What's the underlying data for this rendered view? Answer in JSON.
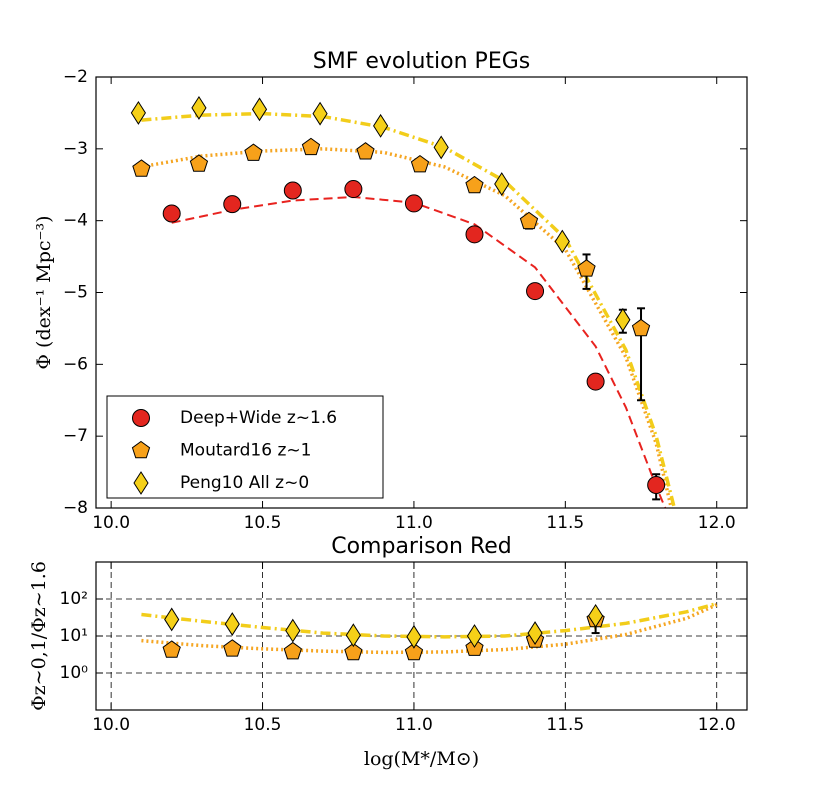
{
  "chart_data": [
    {
      "type": "scatter",
      "title": "SMF evolution PEGs",
      "ylabel": "Φ (dex⁻¹ Mpc⁻³)",
      "xlim": [
        9.95,
        12.1
      ],
      "xticks": [
        {
          "value": 10.0,
          "label": "10.0"
        },
        10.5,
        {
          "value": 11.0,
          "label": "11.0"
        },
        11.5,
        {
          "value": 12.0,
          "label": "12.0"
        }
      ],
      "ylim": [
        -8,
        -2
      ],
      "yticks": [
        {
          "value": -8,
          "label": "−8"
        },
        {
          "value": -7,
          "label": "−7"
        },
        {
          "value": -6,
          "label": "−6"
        },
        {
          "value": -5,
          "label": "−5"
        },
        {
          "value": -4,
          "label": "−4"
        },
        {
          "value": -3,
          "label": "−3"
        },
        {
          "value": -2,
          "label": "−2"
        }
      ],
      "grid": false,
      "log_y": false,
      "legend": "lower left",
      "series": [
        {
          "name": "Deep+Wide z~1.6",
          "color": "#e3261f",
          "marker": "circle",
          "x": [
            10.2,
            10.4,
            10.6,
            10.8,
            11.0,
            11.2,
            11.4,
            11.6,
            11.8
          ],
          "values": [
            -3.9,
            -3.77,
            -3.58,
            -3.56,
            -3.76,
            -4.19,
            -4.98,
            -6.24,
            -7.68
          ],
          "yerr_low": [
            null,
            null,
            null,
            null,
            null,
            null,
            null,
            null,
            0.2
          ],
          "yerr_high": [
            null,
            null,
            null,
            null,
            null,
            null,
            null,
            null,
            0.15
          ]
        },
        {
          "name": "Moutard16 z~1",
          "color": "#f7a11a",
          "marker": "pentagon",
          "x": [
            10.1,
            10.29,
            10.47,
            10.66,
            10.84,
            11.02,
            11.2,
            11.38,
            11.57,
            11.75
          ],
          "values": [
            -3.28,
            -3.21,
            -3.06,
            -2.98,
            -3.04,
            -3.22,
            -3.51,
            -4.01,
            -4.67,
            -5.5
          ],
          "yerr_low": [
            null,
            null,
            null,
            null,
            null,
            null,
            null,
            0.1,
            0.28,
            1.0
          ],
          "yerr_high": [
            null,
            null,
            null,
            null,
            null,
            null,
            null,
            0.08,
            0.2,
            0.28
          ]
        },
        {
          "name": "Peng10 All z~0",
          "color": "#f5d018",
          "marker": "diamond",
          "x": [
            10.09,
            10.29,
            10.49,
            10.69,
            10.89,
            11.09,
            11.29,
            11.49,
            11.69
          ],
          "values": [
            -2.5,
            -2.43,
            -2.45,
            -2.51,
            -2.68,
            -2.98,
            -3.49,
            -4.29,
            -5.38
          ],
          "yerr_low": [
            null,
            null,
            null,
            null,
            null,
            null,
            null,
            null,
            0.18
          ],
          "yerr_high": [
            null,
            null,
            null,
            null,
            null,
            null,
            null,
            null,
            0.14
          ]
        }
      ],
      "fits": [
        {
          "color": "#e8231f",
          "style": "dashed",
          "x": [
            10.2,
            10.4,
            10.6,
            10.8,
            11.0,
            11.2,
            11.4,
            11.6,
            11.7,
            11.8,
            11.83
          ],
          "values": [
            -4.03,
            -3.85,
            -3.72,
            -3.67,
            -3.75,
            -4.05,
            -4.65,
            -5.75,
            -6.6,
            -7.7,
            -8.0
          ]
        },
        {
          "color": "#f5a623",
          "style": "dotted",
          "x": [
            10.1,
            10.3,
            10.5,
            10.7,
            10.9,
            11.1,
            11.3,
            11.5,
            11.7,
            11.8,
            11.85
          ],
          "values": [
            -3.25,
            -3.1,
            -3.03,
            -3.0,
            -3.05,
            -3.25,
            -3.65,
            -4.4,
            -5.9,
            -7.1,
            -8.0
          ]
        },
        {
          "color": "#f2cd1a",
          "style": "dashdot",
          "x": [
            10.1,
            10.3,
            10.5,
            10.7,
            10.9,
            11.1,
            11.3,
            11.5,
            11.7,
            11.8,
            11.86
          ],
          "values": [
            -2.6,
            -2.53,
            -2.51,
            -2.55,
            -2.7,
            -2.98,
            -3.45,
            -4.25,
            -5.8,
            -7.0,
            -8.0
          ]
        }
      ]
    },
    {
      "type": "scatter",
      "title": "Comparison Red",
      "ylabel": "Φz∼0,1/Φz∼1.6",
      "xlabel": "log(M*/M⊙)",
      "xlim": [
        9.95,
        12.1
      ],
      "xticks": [
        {
          "value": 10.0,
          "label": "10.0"
        },
        10.5,
        {
          "value": 11.0,
          "label": "11.0"
        },
        11.5,
        {
          "value": 12.0,
          "label": "12.0"
        }
      ],
      "ylim": [
        0.1,
        1000
      ],
      "yticks": [
        {
          "value": 1,
          "label": "10⁰"
        },
        {
          "value": 10,
          "label": "10¹"
        },
        {
          "value": 100,
          "label": "10²"
        }
      ],
      "grid": true,
      "log_y": true,
      "series": [
        {
          "color": "#f7a11a",
          "marker": "pentagon",
          "x": [
            10.2,
            10.4,
            10.6,
            10.8,
            11.0,
            11.2,
            11.4,
            11.6
          ],
          "values": [
            4.2,
            4.5,
            3.8,
            3.6,
            3.6,
            4.7,
            7.8,
            28
          ],
          "yerr_low": [
            null,
            null,
            null,
            null,
            null,
            null,
            null,
            16
          ],
          "yerr_high": [
            null,
            null,
            null,
            null,
            null,
            null,
            null,
            17
          ]
        },
        {
          "color": "#f5d018",
          "marker": "diamond",
          "x": [
            10.2,
            10.4,
            10.6,
            10.8,
            11.0,
            11.2,
            11.4,
            11.6
          ],
          "values": [
            28,
            21,
            14,
            10.5,
            9.5,
            10,
            12,
            35
          ],
          "yerr_low": [
            null,
            null,
            null,
            null,
            null,
            null,
            null,
            null
          ],
          "yerr_high": [
            null,
            null,
            null,
            null,
            null,
            null,
            null,
            null
          ]
        }
      ],
      "fits": [
        {
          "color": "#f5a623",
          "style": "dotted",
          "x": [
            10.1,
            10.3,
            10.5,
            10.7,
            10.9,
            11.1,
            11.3,
            11.5,
            11.7,
            11.9,
            12.0
          ],
          "values": [
            7.5,
            5.5,
            4.5,
            3.9,
            3.6,
            3.7,
            4.3,
            6,
            11,
            30,
            70
          ]
        },
        {
          "color": "#f2cd1a",
          "style": "dashdot",
          "x": [
            10.1,
            10.3,
            10.5,
            10.7,
            10.9,
            11.1,
            11.3,
            11.5,
            11.7,
            11.9,
            12.0
          ],
          "values": [
            38,
            25,
            17,
            12,
            10,
            9.5,
            10,
            14,
            22,
            45,
            75
          ]
        }
      ]
    }
  ]
}
